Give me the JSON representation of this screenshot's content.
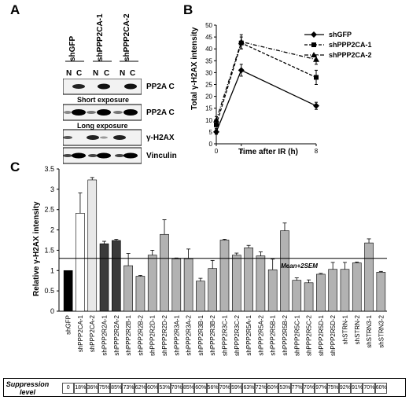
{
  "panels": {
    "A": "A",
    "B": "B",
    "C": "C"
  },
  "panel_a": {
    "lane_groups": [
      "shGFP",
      "shPPP2CA-1",
      "shPPP2CA-2"
    ],
    "fractions": [
      "N",
      "C",
      "N",
      "C",
      "N",
      "C"
    ],
    "blots": [
      "PP2A C",
      "PP2A C",
      "γ-H2AX",
      "Vinculin"
    ],
    "exposures": [
      "Short exposure",
      "Long exposure"
    ]
  },
  "chart_data": [
    {
      "type": "line",
      "panel": "B",
      "ylabel": "Total γ-H2AX intensity",
      "xlabel": "Time after IR (h)",
      "x": [
        0,
        2,
        8
      ],
      "xlim": [
        0,
        8
      ],
      "ylim": [
        0,
        50
      ],
      "yticks": [
        0,
        5,
        10,
        15,
        20,
        25,
        30,
        35,
        40,
        45,
        50
      ],
      "xticks": [
        0,
        2,
        8
      ],
      "legend_position": "top-right",
      "series": [
        {
          "name": "shGFP",
          "marker": "diamond",
          "line": "solid",
          "values": [
            5,
            31,
            16
          ],
          "errors": [
            1,
            2.5,
            1.5
          ]
        },
        {
          "name": "shPPP2CA-1",
          "marker": "square",
          "line": "dashed",
          "values": [
            8,
            42.5,
            28
          ],
          "errors": [
            1.5,
            2.5,
            3
          ]
        },
        {
          "name": "shPPP2CA-2",
          "marker": "triangle",
          "line": "dash-dot",
          "values": [
            10,
            43,
            35.5
          ],
          "errors": [
            1.5,
            3,
            2
          ]
        }
      ]
    },
    {
      "type": "bar",
      "panel": "C",
      "ylabel": "Relative γ-H2AX intensity",
      "ylim": [
        0,
        3.5
      ],
      "yticks": [
        0,
        0.5,
        1,
        1.5,
        2,
        2.5,
        3,
        3.5
      ],
      "threshold": {
        "value": 1.3,
        "label": "Mean+2SEM"
      },
      "categories": [
        "shGFP",
        "shPPP2CA-1",
        "shPPP2CA-2",
        "shPPP2R2A-1",
        "shPPP2R2A-2",
        "shPPP2R2B-1",
        "shPPP2R2B-2",
        "shPPP2R2D-1",
        "shPPP2R2D-2",
        "shPPP2R3A-1",
        "shPPP2R3A-2",
        "shPPP2R3B-1",
        "shPPP2R3B-2",
        "shPPP2R3C-1",
        "shPPP2R3C-2",
        "shPPP2R5A-1",
        "shPPP2R5A-2",
        "shPPP2R5B-1",
        "shPPP2R5B-2",
        "shPPP2R5C-1",
        "shPPP2R5C-2",
        "shPPP2R5D-1",
        "shPPP2R5D-2",
        "shSTRN-1",
        "shSTRN-2",
        "shSTRN3-1",
        "shSTRN3-2"
      ],
      "values": [
        1.0,
        2.41,
        3.23,
        1.66,
        1.74,
        1.12,
        0.86,
        1.38,
        1.89,
        1.29,
        1.29,
        0.74,
        1.05,
        1.75,
        1.38,
        1.56,
        1.36,
        1.02,
        1.98,
        0.76,
        0.7,
        0.91,
        1.03,
        1.03,
        1.19,
        1.68,
        0.96
      ],
      "errors": [
        0,
        0.5,
        0.06,
        0.06,
        0.03,
        0.3,
        0.02,
        0.12,
        0.36,
        0.02,
        0.24,
        0.07,
        0.2,
        0.02,
        0.05,
        0.06,
        0.1,
        0.26,
        0.19,
        0.06,
        0.07,
        0.02,
        0.17,
        0.17,
        0.02,
        0.1,
        0.02
      ],
      "colors": [
        "#000000",
        "#ffffff",
        "#e8e8e8",
        "#3a3a3a",
        "#3a3a3a",
        "#b2b2b2",
        "#b2b2b2",
        "#b2b2b2",
        "#b2b2b2",
        "#b2b2b2",
        "#b2b2b2",
        "#b2b2b2",
        "#b2b2b2",
        "#b2b2b2",
        "#b2b2b2",
        "#b2b2b2",
        "#b2b2b2",
        "#b2b2b2",
        "#b2b2b2",
        "#b2b2b2",
        "#b2b2b2",
        "#b2b2b2",
        "#b2b2b2",
        "#b2b2b2",
        "#b2b2b2",
        "#b2b2b2",
        "#b2b2b2"
      ],
      "suppression_label": [
        "Suppression",
        "level"
      ],
      "suppression": [
        "0",
        "18%",
        "36%",
        "75%",
        "85%",
        "73%",
        "62%",
        "60%",
        "53%",
        "70%",
        "85%",
        "60%",
        "56%",
        "70%",
        "59%",
        "63%",
        "72%",
        "60%",
        "53%",
        "77%",
        "70%",
        "97%",
        "75%",
        "92%",
        "91%",
        "70%",
        "60%"
      ]
    }
  ]
}
